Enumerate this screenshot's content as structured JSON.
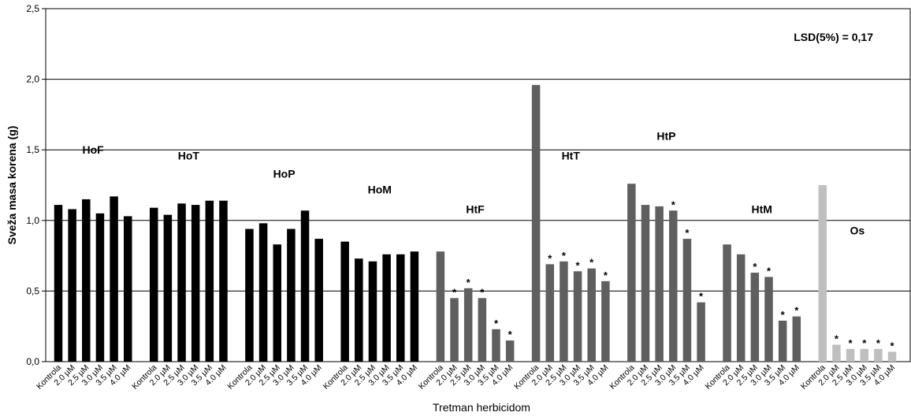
{
  "chart_data": {
    "type": "bar",
    "xlabel": "Tretman herbicidom",
    "ylabel": "Sveža masa korena (g)",
    "ylim": [
      0,
      2.5
    ],
    "yticks": [
      "0,0",
      "0,5",
      "1,0",
      "1,5",
      "2,0",
      "2,5"
    ],
    "grid": true,
    "annotation": "LSD(5%) = 0,17",
    "categories": [
      "Kontrola",
      "2.0 µM",
      "2.5 µM",
      "3.0 µM",
      "3.5 µM",
      "4.0 µM"
    ],
    "series": [
      {
        "name": "HoF",
        "color": "#000000",
        "values": [
          1.11,
          1.08,
          1.15,
          1.05,
          1.17,
          1.03
        ],
        "sig": [
          false,
          false,
          false,
          false,
          false,
          false
        ]
      },
      {
        "name": "HoT",
        "color": "#000000",
        "values": [
          1.09,
          1.04,
          1.12,
          1.11,
          1.14,
          1.14
        ],
        "sig": [
          false,
          false,
          false,
          false,
          false,
          false
        ]
      },
      {
        "name": "HoP",
        "color": "#000000",
        "values": [
          0.94,
          0.98,
          0.83,
          0.94,
          1.07,
          0.87
        ],
        "sig": [
          false,
          false,
          false,
          false,
          false,
          false
        ]
      },
      {
        "name": "HoM",
        "color": "#000000",
        "values": [
          0.85,
          0.73,
          0.71,
          0.76,
          0.76,
          0.78
        ],
        "sig": [
          false,
          false,
          false,
          false,
          false,
          false
        ]
      },
      {
        "name": "HtF",
        "color": "#5f5f5f",
        "values": [
          0.78,
          0.45,
          0.52,
          0.45,
          0.23,
          0.15
        ],
        "sig": [
          false,
          true,
          true,
          true,
          true,
          true
        ]
      },
      {
        "name": "HtT",
        "color": "#5f5f5f",
        "values": [
          1.96,
          0.69,
          0.71,
          0.64,
          0.66,
          0.57
        ],
        "sig": [
          false,
          true,
          true,
          true,
          true,
          true
        ]
      },
      {
        "name": "HtP",
        "color": "#5f5f5f",
        "values": [
          1.26,
          1.11,
          1.1,
          1.07,
          0.87,
          0.42
        ],
        "sig": [
          false,
          false,
          false,
          true,
          true,
          true
        ]
      },
      {
        "name": "HtM",
        "color": "#5f5f5f",
        "values": [
          0.83,
          0.76,
          0.63,
          0.6,
          0.29,
          0.32
        ],
        "sig": [
          false,
          false,
          true,
          true,
          true,
          true
        ]
      },
      {
        "name": "Os",
        "color": "#bfbfbf",
        "values": [
          1.25,
          0.12,
          0.09,
          0.09,
          0.09,
          0.07
        ],
        "sig": [
          false,
          true,
          true,
          true,
          true,
          true
        ]
      }
    ],
    "group_label_levels": [
      1.5,
      1.46,
      1.33,
      1.22,
      1.08,
      1.46,
      1.6,
      1.08,
      0.93
    ],
    "significance_marker": "*"
  }
}
